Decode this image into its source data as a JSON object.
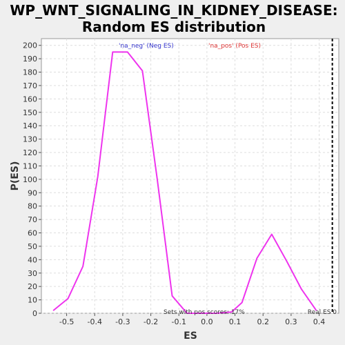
{
  "chart_data": {
    "type": "line",
    "title": "WP_WNT_SIGNALING_IN_KIDNEY_DISEASE:",
    "subtitle": "Random ES distribution",
    "xlabel": "ES",
    "ylabel": "P(ES)",
    "xlim": [
      -0.59,
      0.47
    ],
    "ylim": [
      0,
      205
    ],
    "x_ticks": [
      -0.5,
      -0.4,
      -0.3,
      -0.2,
      -0.1,
      0.0,
      0.1,
      0.2,
      0.3,
      0.4
    ],
    "x_tick_labels": [
      "-0.5",
      "-0.4",
      "-0.3",
      "-0.2",
      "-0.1",
      "0.0",
      "0.1",
      "0.2",
      "0.3",
      "0.4"
    ],
    "y_ticks": [
      0,
      10,
      20,
      30,
      40,
      50,
      60,
      70,
      80,
      90,
      100,
      110,
      120,
      130,
      140,
      150,
      160,
      170,
      180,
      190,
      200
    ],
    "y_tick_labels": [
      "0",
      "10",
      "20",
      "30",
      "40",
      "50",
      "60",
      "70",
      "80",
      "90",
      "100",
      "110",
      "120",
      "130",
      "140",
      "150",
      "160",
      "170",
      "180",
      "190",
      "200"
    ],
    "grid": true,
    "series": [
      {
        "color": "#ee33ee",
        "x": [
          -0.548,
          -0.495,
          -0.442,
          -0.389,
          -0.336,
          -0.283,
          -0.23,
          -0.177,
          -0.124,
          -0.071,
          -0.018,
          0.035,
          0.088,
          0.125,
          0.178,
          0.231,
          0.284,
          0.337,
          0.39
        ],
        "y": [
          2,
          11,
          35,
          102,
          195,
          195,
          181,
          100,
          13,
          0,
          0,
          0,
          1,
          8,
          41,
          59,
          39,
          18,
          2
        ]
      }
    ],
    "real_es": {
      "x": 0.447,
      "label": "Real ES 0",
      "color": "#000000"
    },
    "annotations": [
      {
        "text": "'na_neg' (Neg ES)",
        "color": "#3333cc"
      },
      {
        "text": "'na_pos' (Pos ES)",
        "color": "#dd3333"
      },
      {
        "text": "Sets with pos scores: 17%",
        "color": "#333333"
      }
    ]
  }
}
